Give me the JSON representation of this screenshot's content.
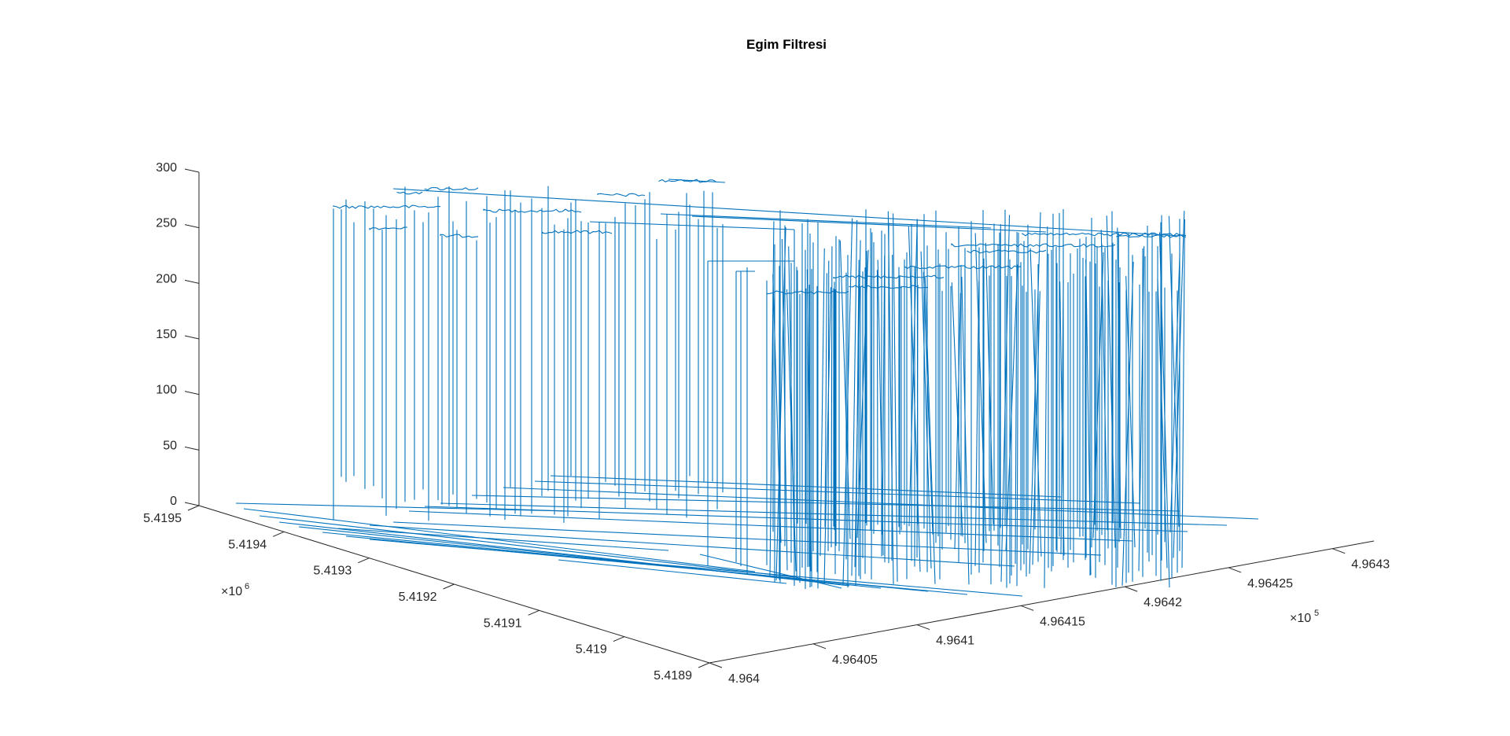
{
  "chart_data": {
    "type": "line",
    "title": "Egim Filtresi",
    "xlabel": "",
    "ylabel": "",
    "zlabel": "",
    "color": "#0072BD",
    "x_axis": {
      "range": [
        4.964,
        4.96432
      ],
      "ticks": [
        4.964,
        4.96405,
        4.9641,
        4.96415,
        4.9642,
        4.96425,
        4.9643
      ],
      "tick_labels": [
        "4.964",
        "4.96405",
        "4.9641",
        "4.96415",
        "4.9642",
        "4.96425",
        "4.9643"
      ],
      "multiplier": "10",
      "multiplier_exp": "5"
    },
    "y_axis": {
      "range": [
        5.4189,
        5.4195
      ],
      "ticks": [
        5.4189,
        5.419,
        5.4191,
        5.4192,
        5.4193,
        5.4194,
        5.4195
      ],
      "tick_labels": [
        "5.4189",
        "5.419",
        "5.4191",
        "5.4192",
        "5.4193",
        "5.4194",
        "5.4195"
      ],
      "multiplier": "10",
      "multiplier_exp": "6"
    },
    "z_axis": {
      "range": [
        0,
        300
      ],
      "ticks": [
        0,
        50,
        100,
        150,
        200,
        250,
        300
      ],
      "tick_labels": [
        "0",
        "50",
        "100",
        "150",
        "200",
        "250",
        "300"
      ]
    },
    "grid": false,
    "legend": "none",
    "series": [
      {
        "segments": [
          {
            "x0": 4.96402,
            "x1": 4.96431,
            "y": 5.41902,
            "z": [
              0,
              0
            ]
          },
          {
            "x0": 4.96401,
            "x1": 4.96428,
            "y": 5.41908,
            "z": [
              0,
              0
            ]
          },
          {
            "x0": 4.964,
            "x1": 4.96425,
            "y": 5.41913,
            "z": [
              0,
              0
            ]
          },
          {
            "x0": 4.964,
            "x1": 4.96423,
            "y": 5.41918,
            "z": [
              0,
              0
            ]
          },
          {
            "x0": 4.964,
            "x1": 4.96421,
            "y": 5.41923,
            "z": [
              0,
              0
            ]
          },
          {
            "x0": 4.964,
            "x1": 4.96418,
            "y": 5.41928,
            "z": [
              0,
              0
            ]
          },
          {
            "x0": 4.964,
            "x1": 4.96414,
            "y": 5.41933,
            "z": [
              0,
              0
            ]
          },
          {
            "x0": 4.964,
            "x1": 4.96411,
            "y": 5.41937,
            "z": [
              0,
              0
            ]
          },
          {
            "x0": 4.964,
            "x1": 4.96409,
            "y": 5.41941,
            "z": [
              0,
              0
            ]
          }
        ],
        "spikes_front": [
          {
            "x": 4.96403,
            "y": 5.41895,
            "z": 0,
            "top": 240
          },
          {
            "x": 4.96404,
            "y": 5.41896,
            "z": 0,
            "top": 235
          },
          {
            "x": 4.96405,
            "y": 5.41897,
            "z": 0,
            "top": 248
          },
          {
            "x": 4.96406,
            "y": 5.41894,
            "z": 0,
            "top": 230
          },
          {
            "x": 4.96407,
            "y": 5.41898,
            "z": 0,
            "top": 245
          }
        ]
      }
    ]
  }
}
